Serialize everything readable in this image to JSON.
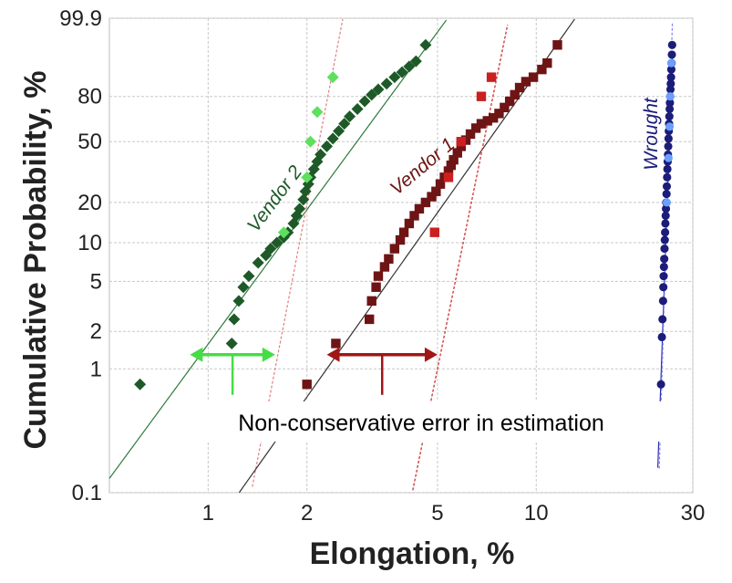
{
  "chart_data": {
    "type": "scatter",
    "title": "",
    "xlabel": "Elongation, %",
    "ylabel": "Cumulative Probability, %",
    "x_scale": "log",
    "y_scale": "weibull-probability",
    "xlim": [
      0.5,
      30
    ],
    "ylim": [
      0.1,
      99.9
    ],
    "grid": true,
    "x_ticks": [
      1,
      2,
      5,
      10,
      30
    ],
    "x_tick_labels": [
      "1",
      "2",
      "5",
      "10",
      "30"
    ],
    "y_ticks": [
      0.1,
      1,
      2,
      5,
      10,
      20,
      50,
      80,
      99.9
    ],
    "y_tick_labels": [
      "0.1",
      "1",
      "2",
      "5",
      "10",
      "20",
      "50",
      "80",
      "99.9"
    ],
    "annotation": "Non-conservative error in estimation",
    "series": [
      {
        "name": "Vendor 2",
        "color": "#1e5a28",
        "light_color": "#5ee05e",
        "marker": "diamond",
        "points": [
          [
            0.62,
            0.75
          ],
          [
            1.18,
            1.6
          ],
          [
            1.2,
            2.5
          ],
          [
            1.24,
            3.5
          ],
          [
            1.28,
            4.5
          ],
          [
            1.33,
            5.5
          ],
          [
            1.42,
            7.0
          ],
          [
            1.5,
            8.0
          ],
          [
            1.55,
            9.0
          ],
          [
            1.62,
            10.0
          ],
          [
            1.7,
            11.0
          ],
          [
            1.75,
            12.0
          ],
          [
            1.82,
            14.0
          ],
          [
            1.86,
            16.0
          ],
          [
            1.9,
            18.0
          ],
          [
            1.95,
            21.0
          ],
          [
            1.98,
            24.0
          ],
          [
            2.02,
            27.0
          ],
          [
            2.05,
            30.0
          ],
          [
            2.1,
            34.0
          ],
          [
            2.15,
            38.0
          ],
          [
            2.2,
            42.0
          ],
          [
            2.3,
            47.0
          ],
          [
            2.4,
            52.0
          ],
          [
            2.5,
            57.0
          ],
          [
            2.6,
            62.0
          ],
          [
            2.7,
            67.0
          ],
          [
            2.85,
            72.0
          ],
          [
            3.0,
            77.0
          ],
          [
            3.15,
            81.0
          ],
          [
            3.3,
            84.0
          ],
          [
            3.5,
            87.0
          ],
          [
            3.7,
            90.0
          ],
          [
            3.9,
            92.0
          ],
          [
            4.1,
            94.0
          ],
          [
            4.3,
            95.5
          ],
          [
            4.6,
            98.5
          ]
        ],
        "reference_points": [
          [
            1.7,
            12.0
          ],
          [
            2.0,
            30.0
          ],
          [
            2.05,
            50.0
          ],
          [
            2.15,
            70.0
          ],
          [
            2.4,
            90.0
          ]
        ]
      },
      {
        "name": "Vendor 1",
        "color": "#6e1414",
        "light_color": "#cc1f1f",
        "marker": "square",
        "points": [
          [
            2.0,
            0.75
          ],
          [
            2.45,
            1.6
          ],
          [
            3.1,
            2.5
          ],
          [
            3.15,
            3.5
          ],
          [
            3.25,
            4.5
          ],
          [
            3.3,
            5.5
          ],
          [
            3.45,
            6.5
          ],
          [
            3.55,
            7.5
          ],
          [
            3.7,
            9.0
          ],
          [
            3.85,
            10.5
          ],
          [
            3.95,
            12.0
          ],
          [
            4.1,
            14.0
          ],
          [
            4.25,
            16.0
          ],
          [
            4.4,
            18.0
          ],
          [
            4.6,
            20.0
          ],
          [
            4.8,
            22.0
          ],
          [
            4.95,
            24.0
          ],
          [
            5.1,
            27.0
          ],
          [
            5.25,
            30.0
          ],
          [
            5.4,
            33.0
          ],
          [
            5.5,
            36.0
          ],
          [
            5.6,
            39.0
          ],
          [
            5.75,
            43.0
          ],
          [
            5.9,
            47.0
          ],
          [
            6.1,
            51.0
          ],
          [
            6.3,
            55.0
          ],
          [
            6.55,
            59.0
          ],
          [
            6.8,
            62.0
          ],
          [
            7.1,
            64.0
          ],
          [
            7.4,
            66.0
          ],
          [
            7.7,
            69.0
          ],
          [
            8.0,
            73.0
          ],
          [
            8.3,
            77.0
          ],
          [
            8.6,
            81.0
          ],
          [
            8.9,
            85.0
          ],
          [
            9.3,
            88.0
          ],
          [
            9.8,
            90.0
          ],
          [
            10.4,
            93.0
          ],
          [
            10.8,
            95.0
          ],
          [
            11.6,
            98.5
          ]
        ],
        "reference_points": [
          [
            4.9,
            12.0
          ],
          [
            5.4,
            30.0
          ],
          [
            5.9,
            50.0
          ],
          [
            6.8,
            80.0
          ],
          [
            7.3,
            90.0
          ]
        ]
      },
      {
        "name": "Wrought",
        "color": "#1c1c7a",
        "light_color": "#6aa0ff",
        "marker": "circle",
        "points": [
          [
            24.0,
            0.75
          ],
          [
            24.15,
            1.8
          ],
          [
            24.25,
            2.5
          ],
          [
            24.35,
            3.5
          ],
          [
            24.4,
            4.5
          ],
          [
            24.45,
            5.5
          ],
          [
            24.5,
            6.5
          ],
          [
            24.55,
            7.5
          ],
          [
            24.6,
            9.0
          ],
          [
            24.65,
            10.5
          ],
          [
            24.7,
            12.0
          ],
          [
            24.75,
            14.0
          ],
          [
            24.8,
            16.0
          ],
          [
            24.85,
            18.0
          ],
          [
            24.9,
            20.0
          ],
          [
            24.95,
            23.0
          ],
          [
            25.0,
            26.0
          ],
          [
            25.05,
            30.0
          ],
          [
            25.1,
            34.0
          ],
          [
            25.15,
            38.0
          ],
          [
            25.2,
            42.0
          ],
          [
            25.25,
            47.0
          ],
          [
            25.3,
            52.0
          ],
          [
            25.35,
            57.0
          ],
          [
            25.4,
            62.0
          ],
          [
            25.45,
            67.0
          ],
          [
            25.5,
            72.0
          ],
          [
            25.55,
            76.0
          ],
          [
            25.6,
            80.0
          ],
          [
            25.65,
            84.0
          ],
          [
            25.7,
            87.0
          ],
          [
            25.75,
            90.0
          ],
          [
            25.8,
            93.0
          ],
          [
            25.85,
            95.0
          ],
          [
            25.9,
            97.0
          ],
          [
            25.95,
            98.5
          ]
        ],
        "reference_points": [
          [
            25.0,
            20.0
          ],
          [
            25.3,
            40.0
          ],
          [
            25.5,
            60.0
          ],
          [
            25.6,
            80.0
          ],
          [
            25.8,
            95.0
          ]
        ]
      }
    ],
    "fits": [
      {
        "name": "Vendor 2 fit",
        "color": "#2e7a3a",
        "dashed": false,
        "x_at_1": 0.88,
        "x_at_99": 4.8
      },
      {
        "name": "Vendor 2 threshold fit",
        "color": "#e08080",
        "dashed": true,
        "x_at_1": 1.6,
        "x_at_99": 2.5
      },
      {
        "name": "Vendor 1 fit",
        "color": "#333333",
        "dashed": false,
        "x_at_1": 2.3,
        "x_at_99": 11.8
      },
      {
        "name": "Vendor 1 threshold fit",
        "color": "#cc2020",
        "dashed": true,
        "x_at_1": 5.0,
        "x_at_99": 8.0
      },
      {
        "name": "Wrought fit",
        "color": "#3030b0",
        "dashed": false,
        "x_at_1": 24.05,
        "x_at_99": 26.1
      },
      {
        "name": "Wrought threshold fit",
        "color": "#8080ff",
        "dashed": true,
        "x_at_1": 24.2,
        "x_at_99": 25.9
      }
    ],
    "error_ranges": [
      {
        "series": "Vendor 2",
        "color": "#44dd44",
        "x_from": 0.88,
        "x_to": 1.6,
        "y": 1.3
      },
      {
        "series": "Vendor 1",
        "color": "#a01616",
        "x_from": 2.3,
        "x_to": 5.0,
        "y": 1.3
      }
    ]
  }
}
